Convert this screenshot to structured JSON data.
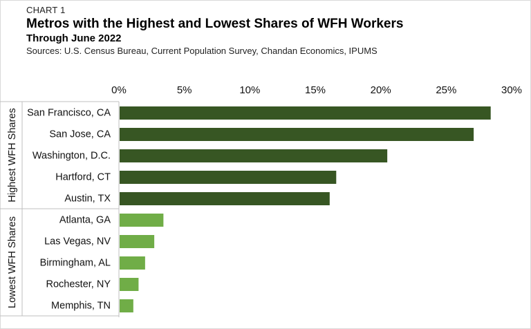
{
  "header": {
    "overline": "CHART 1",
    "title": "Metros with the Highest and Lowest Shares of WFH Workers",
    "subtitle": "Through June 2022",
    "sources": "Sources: U.S. Census Bureau, Current Population Survey, Chandan Economics, IPUMS"
  },
  "chart_data": {
    "type": "bar",
    "orientation": "horizontal",
    "title": "Metros with the Highest and Lowest Shares of WFH Workers",
    "subtitle": "Through June 2022",
    "xlim": [
      0,
      30
    ],
    "x_ticks": [
      "0%",
      "5%",
      "10%",
      "15%",
      "20%",
      "25%",
      "30%"
    ],
    "x_tick_values": [
      0,
      5,
      10,
      15,
      20,
      25,
      30
    ],
    "x_axis_position": "top",
    "grid": false,
    "groups": [
      {
        "name": "Highest WFH Shares",
        "color": "#375623",
        "categories": [
          "San Francisco, CA",
          "San Jose, CA",
          "Washington, D.C.",
          "Hartford, CT",
          "Austin, TX"
        ],
        "values": [
          28.4,
          27.1,
          20.5,
          16.6,
          16.1
        ]
      },
      {
        "name": "Lowest WFH Shares",
        "color": "#70AD47",
        "categories": [
          "Atlanta, GA",
          "Las Vegas, NV",
          "Birmingham, AL",
          "Rochester, NY",
          "Memphis, TN"
        ],
        "values": [
          3.4,
          2.7,
          2.0,
          1.5,
          1.1
        ]
      }
    ]
  }
}
